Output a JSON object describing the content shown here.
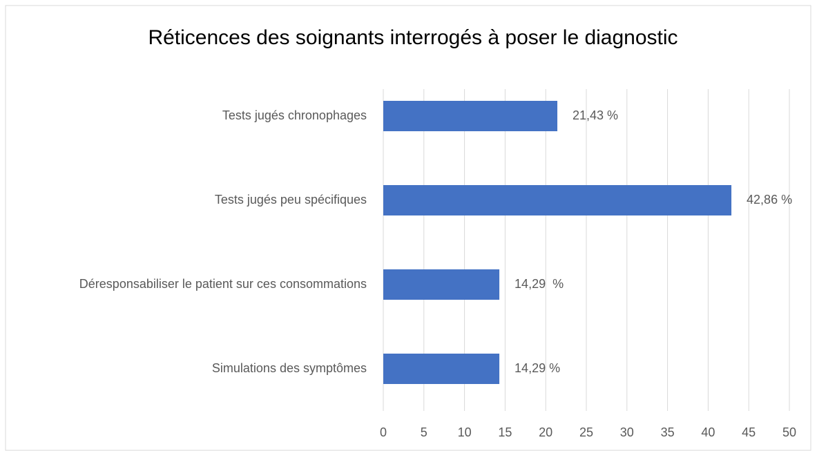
{
  "chart_data": {
    "type": "barh",
    "title": "Réticences des soignants interrogés à poser le diagnostic",
    "categories": [
      "Tests jugés chronophages",
      "Tests jugés peu spécifiques",
      "Déresponsabiliser le patient sur ces consommations",
      "Simulations des symptômes"
    ],
    "values": [
      21.43,
      42.86,
      14.29,
      14.29
    ],
    "value_labels": [
      "21,43 %",
      "42,86 %",
      "14,29  %",
      "14,29 %"
    ],
    "color": "#4472c4",
    "xlim": [
      0,
      50
    ],
    "xticks": [
      0,
      5,
      10,
      15,
      20,
      25,
      30,
      35,
      40,
      45,
      50
    ],
    "grid": true
  }
}
